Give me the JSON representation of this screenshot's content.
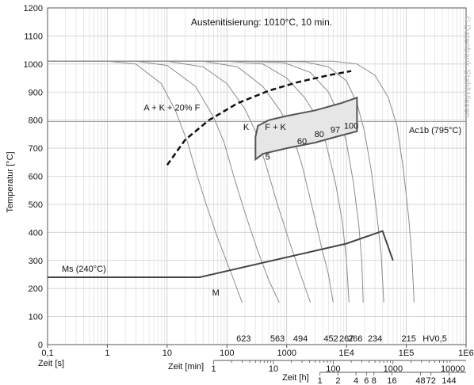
{
  "chart_data": {
    "type": "line",
    "x_scale": "log",
    "xlim": [
      0.1,
      1000000
    ],
    "ylim": [
      0,
      1200
    ],
    "y_ticks": [
      0,
      100,
      200,
      300,
      400,
      500,
      600,
      700,
      800,
      900,
      1000,
      1100,
      1200
    ],
    "x_ticks": [
      {
        "v": 0.1,
        "label": "0,1"
      },
      {
        "v": 1,
        "label": "1"
      },
      {
        "v": 10,
        "label": "10"
      },
      {
        "v": 100,
        "label": "100"
      },
      {
        "v": 1000,
        "label": "1000"
      },
      {
        "v": 10000,
        "label": "1E4"
      },
      {
        "v": 100000,
        "label": "1E5"
      },
      {
        "v": 1000000,
        "label": "1E6"
      }
    ],
    "ylabel": "Temperatur [°C]",
    "axis_label_s": "Zeit [s]",
    "axis_label_min": "Zeit [min]",
    "axis_label_h": "Zeit [h]",
    "min_ticks": [
      {
        "v": 1,
        "label": "1"
      },
      {
        "v": 10,
        "label": "10"
      },
      {
        "v": 100,
        "label": "100"
      },
      {
        "v": 1000,
        "label": "1000"
      },
      {
        "v": 10000,
        "label": "10000"
      }
    ],
    "h_ticks": [
      {
        "v": 1,
        "label": "1"
      },
      {
        "v": 2,
        "label": "2"
      },
      {
        "v": 4,
        "label": "4"
      },
      {
        "v": 6,
        "label": "6"
      },
      {
        "v": 8,
        "label": "8"
      },
      {
        "v": 16,
        "label": "16"
      },
      {
        "v": 48,
        "label": "48"
      },
      {
        "v": 72,
        "label": "72"
      },
      {
        "v": 144,
        "label": "144"
      }
    ],
    "title": "Austenitisierung: 1010°C, 10 min.",
    "watermark": "© Datenbank StahlWissen",
    "ac1b": {
      "label": "Ac1b (795°C)",
      "y": 795
    },
    "ms": {
      "label": "Ms (240°C)",
      "y": 240
    },
    "region_labels": [
      {
        "text": "A + K + 20% F",
        "x": 12,
        "y": 835
      },
      {
        "text": "K",
        "x": 210,
        "y": 765
      },
      {
        "text": "F + K",
        "x": 650,
        "y": 765
      },
      {
        "text": "5",
        "x": 480,
        "y": 660
      },
      {
        "text": "60",
        "x": 1800,
        "y": 715
      },
      {
        "text": "80",
        "x": 3500,
        "y": 740
      },
      {
        "text": "97",
        "x": 6500,
        "y": 755
      },
      {
        "text": "100",
        "x": 12000,
        "y": 770
      },
      {
        "text": "M",
        "x": 65,
        "y": 175
      }
    ],
    "hardness_labels": [
      {
        "text": "623",
        "x": 190
      },
      {
        "text": "563",
        "x": 700
      },
      {
        "text": "494",
        "x": 1700
      },
      {
        "text": "452",
        "x": 5500
      },
      {
        "text": "267",
        "x": 10000
      },
      {
        "text": "266",
        "x": 14000
      },
      {
        "text": "234",
        "x": 30000
      },
      {
        "text": "215",
        "x": 110000
      },
      {
        "text": "HV0,5",
        "x": 300000
      }
    ],
    "cooling_curves": [
      {
        "name": "",
        "points": [
          [
            0.1,
            1010
          ],
          [
            1,
            1010
          ],
          [
            3,
            1000
          ],
          [
            8,
            930
          ],
          [
            14,
            830
          ],
          [
            22,
            720
          ],
          [
            32,
            600
          ],
          [
            45,
            500
          ],
          [
            70,
            380
          ],
          [
            120,
            250
          ],
          [
            180,
            150
          ]
        ]
      },
      {
        "name": "",
        "points": [
          [
            0.1,
            1010
          ],
          [
            3,
            1010
          ],
          [
            10,
            995
          ],
          [
            30,
            920
          ],
          [
            60,
            810
          ],
          [
            90,
            720
          ],
          [
            130,
            600
          ],
          [
            200,
            470
          ],
          [
            320,
            340
          ],
          [
            500,
            230
          ],
          [
            750,
            150
          ]
        ]
      },
      {
        "name": "",
        "points": [
          [
            0.1,
            1010
          ],
          [
            10,
            1010
          ],
          [
            40,
            990
          ],
          [
            100,
            930
          ],
          [
            200,
            840
          ],
          [
            300,
            760
          ],
          [
            450,
            640
          ],
          [
            700,
            500
          ],
          [
            1100,
            370
          ],
          [
            1700,
            250
          ],
          [
            2500,
            150
          ]
        ]
      },
      {
        "name": "",
        "points": [
          [
            0.1,
            1010
          ],
          [
            40,
            1010
          ],
          [
            150,
            990
          ],
          [
            400,
            920
          ],
          [
            800,
            830
          ],
          [
            1200,
            760
          ],
          [
            1800,
            640
          ],
          [
            2600,
            500
          ],
          [
            3800,
            350
          ],
          [
            5000,
            250
          ],
          [
            6000,
            150
          ]
        ]
      },
      {
        "name": "",
        "points": [
          [
            0.1,
            1010
          ],
          [
            100,
            1010
          ],
          [
            400,
            1000
          ],
          [
            1000,
            950
          ],
          [
            2000,
            880
          ],
          [
            3000,
            820
          ],
          [
            4500,
            720
          ],
          [
            6500,
            580
          ],
          [
            8500,
            440
          ],
          [
            10000,
            300
          ],
          [
            11000,
            150
          ]
        ]
      },
      {
        "name": "",
        "points": [
          [
            0.1,
            1010
          ],
          [
            200,
            1010
          ],
          [
            900,
            1005
          ],
          [
            2500,
            970
          ],
          [
            5000,
            900
          ],
          [
            7500,
            820
          ],
          [
            10000,
            720
          ],
          [
            13000,
            580
          ],
          [
            16000,
            430
          ],
          [
            18000,
            300
          ],
          [
            19000,
            150
          ]
        ]
      },
      {
        "name": "",
        "points": [
          [
            0.1,
            1010
          ],
          [
            500,
            1010
          ],
          [
            2000,
            1008
          ],
          [
            5000,
            990
          ],
          [
            10000,
            940
          ],
          [
            15000,
            860
          ],
          [
            20000,
            760
          ],
          [
            26000,
            620
          ],
          [
            32000,
            470
          ],
          [
            38000,
            320
          ],
          [
            42000,
            150
          ]
        ]
      },
      {
        "name": "",
        "points": [
          [
            0.1,
            1010
          ],
          [
            1200,
            1010
          ],
          [
            6000,
            1010
          ],
          [
            15000,
            1000
          ],
          [
            30000,
            960
          ],
          [
            50000,
            880
          ],
          [
            70000,
            780
          ],
          [
            90000,
            620
          ],
          [
            110000,
            450
          ],
          [
            125000,
            300
          ],
          [
            135000,
            150
          ]
        ]
      }
    ],
    "dashed_line": [
      [
        10,
        640
      ],
      [
        20,
        730
      ],
      [
        50,
        800
      ],
      [
        150,
        860
      ],
      [
        500,
        905
      ],
      [
        1500,
        935
      ],
      [
        5000,
        960
      ],
      [
        12000,
        975
      ]
    ],
    "fk_region": [
      [
        300,
        660
      ],
      [
        400,
        680
      ],
      [
        1000,
        700
      ],
      [
        3000,
        720
      ],
      [
        8000,
        745
      ],
      [
        15000,
        760
      ],
      [
        15000,
        880
      ],
      [
        8000,
        860
      ],
      [
        3000,
        835
      ],
      [
        1000,
        815
      ],
      [
        500,
        800
      ],
      [
        330,
        780
      ],
      [
        300,
        740
      ]
    ],
    "ms_line": [
      [
        0.1,
        240
      ],
      [
        35,
        240
      ],
      [
        10000,
        360
      ],
      [
        40000,
        405
      ],
      [
        60000,
        300
      ]
    ]
  }
}
